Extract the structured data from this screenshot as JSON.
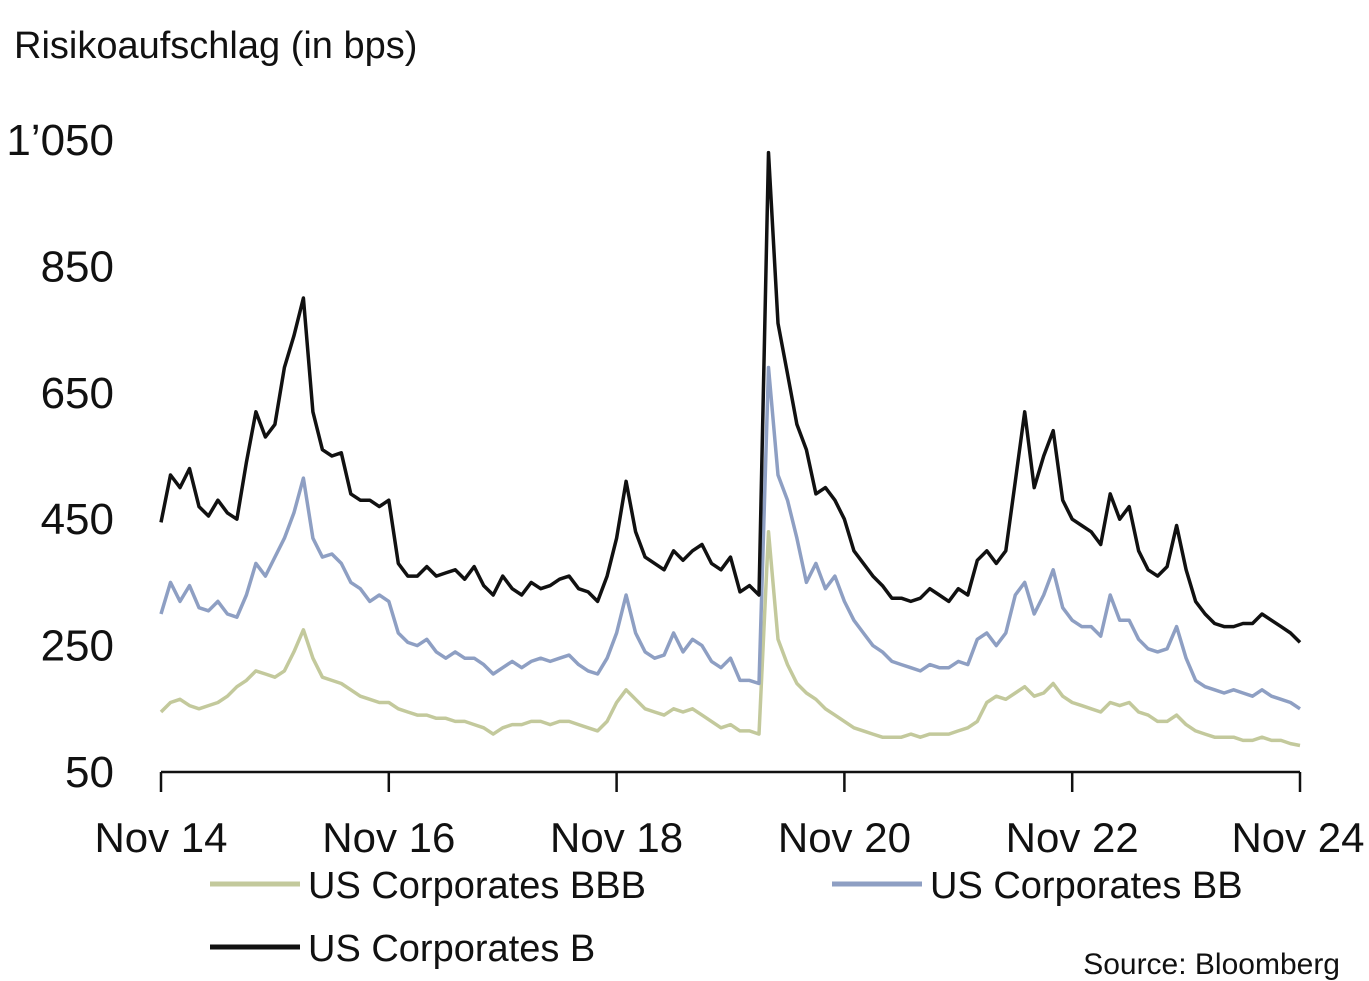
{
  "chart_data": {
    "type": "line",
    "title": "Risikoaufschlag (in bps)",
    "xlabel": "",
    "ylabel": "Risikoaufschlag (in bps)",
    "x_unit": "months since Nov 2014",
    "x": [
      0,
      1,
      2,
      3,
      4,
      5,
      6,
      7,
      8,
      9,
      10,
      11,
      12,
      13,
      14,
      15,
      16,
      17,
      18,
      19,
      20,
      21,
      22,
      23,
      24,
      25,
      26,
      27,
      28,
      29,
      30,
      31,
      32,
      33,
      34,
      35,
      36,
      37,
      38,
      39,
      40,
      41,
      42,
      43,
      44,
      45,
      46,
      47,
      48,
      49,
      50,
      51,
      52,
      53,
      54,
      55,
      56,
      57,
      58,
      59,
      60,
      61,
      62,
      63,
      64,
      65,
      66,
      67,
      68,
      69,
      70,
      71,
      72,
      73,
      74,
      75,
      76,
      77,
      78,
      79,
      80,
      81,
      82,
      83,
      84,
      85,
      86,
      87,
      88,
      89,
      90,
      91,
      92,
      93,
      94,
      95,
      96,
      97,
      98,
      99,
      100,
      101,
      102,
      103,
      104,
      105,
      106,
      107,
      108,
      109,
      110,
      111,
      112,
      113,
      114,
      115,
      116,
      117,
      118,
      119,
      120
    ],
    "xticks": [
      {
        "value": 0,
        "label": "Nov 14"
      },
      {
        "value": 24,
        "label": "Nov 16"
      },
      {
        "value": 48,
        "label": "Nov 18"
      },
      {
        "value": 72,
        "label": "Nov 20"
      },
      {
        "value": 96,
        "label": "Nov 22"
      },
      {
        "value": 120,
        "label": "Nov 24"
      }
    ],
    "yticks": [
      {
        "value": 50,
        "label": "50"
      },
      {
        "value": 250,
        "label": "250"
      },
      {
        "value": 450,
        "label": "450"
      },
      {
        "value": 650,
        "label": "650"
      },
      {
        "value": 850,
        "label": "850"
      },
      {
        "value": 1050,
        "label": "1’050"
      }
    ],
    "ylim": [
      50,
      1050
    ],
    "xlim": [
      0,
      120
    ],
    "grid": false,
    "legend_placement": "bottom",
    "series": [
      {
        "name": "US Corporates BBB",
        "color": "#c3c99c",
        "values": [
          145,
          160,
          165,
          155,
          150,
          155,
          160,
          170,
          185,
          195,
          210,
          205,
          200,
          210,
          240,
          275,
          230,
          200,
          195,
          190,
          180,
          170,
          165,
          160,
          160,
          150,
          145,
          140,
          140,
          135,
          135,
          130,
          130,
          125,
          120,
          110,
          120,
          125,
          125,
          130,
          130,
          125,
          130,
          130,
          125,
          120,
          115,
          130,
          160,
          180,
          165,
          150,
          145,
          140,
          150,
          145,
          150,
          140,
          130,
          120,
          125,
          115,
          115,
          110,
          430,
          260,
          220,
          190,
          175,
          165,
          150,
          140,
          130,
          120,
          115,
          110,
          105,
          105,
          105,
          110,
          105,
          110,
          110,
          110,
          115,
          120,
          130,
          160,
          170,
          165,
          175,
          185,
          170,
          175,
          190,
          170,
          160,
          155,
          150,
          145,
          160,
          155,
          160,
          145,
          140,
          130,
          130,
          140,
          125,
          115,
          110,
          105,
          105,
          105,
          100,
          100,
          105,
          100,
          100,
          95,
          92
        ]
      },
      {
        "name": "US Corporates BB",
        "color": "#8e9fc3",
        "values": [
          300,
          350,
          320,
          345,
          310,
          305,
          320,
          300,
          295,
          330,
          380,
          360,
          390,
          420,
          460,
          515,
          420,
          390,
          395,
          380,
          350,
          340,
          320,
          330,
          320,
          270,
          255,
          250,
          260,
          240,
          230,
          240,
          230,
          230,
          220,
          205,
          215,
          225,
          215,
          225,
          230,
          225,
          230,
          235,
          220,
          210,
          205,
          230,
          270,
          330,
          270,
          240,
          230,
          235,
          270,
          240,
          260,
          250,
          225,
          215,
          230,
          195,
          195,
          190,
          690,
          520,
          480,
          420,
          350,
          380,
          340,
          360,
          320,
          290,
          270,
          250,
          240,
          225,
          220,
          215,
          210,
          220,
          215,
          215,
          225,
          220,
          260,
          270,
          250,
          270,
          330,
          350,
          300,
          330,
          370,
          310,
          290,
          280,
          280,
          265,
          330,
          290,
          290,
          260,
          245,
          240,
          245,
          280,
          230,
          195,
          185,
          180,
          175,
          180,
          175,
          170,
          180,
          170,
          165,
          160,
          150
        ]
      },
      {
        "name": "US Corporates B",
        "color": "#111111",
        "values": [
          445,
          520,
          500,
          530,
          470,
          455,
          480,
          460,
          450,
          540,
          620,
          580,
          600,
          690,
          740,
          800,
          620,
          560,
          550,
          555,
          490,
          480,
          480,
          470,
          480,
          380,
          360,
          360,
          375,
          360,
          365,
          370,
          355,
          375,
          345,
          330,
          360,
          340,
          330,
          350,
          340,
          345,
          355,
          360,
          340,
          335,
          320,
          360,
          420,
          510,
          430,
          390,
          380,
          370,
          400,
          385,
          400,
          410,
          380,
          370,
          390,
          335,
          345,
          330,
          1030,
          760,
          680,
          600,
          560,
          490,
          500,
          480,
          450,
          400,
          380,
          360,
          345,
          325,
          325,
          320,
          325,
          340,
          330,
          320,
          340,
          330,
          385,
          400,
          380,
          400,
          510,
          620,
          500,
          550,
          590,
          480,
          450,
          440,
          430,
          410,
          490,
          450,
          470,
          400,
          370,
          360,
          375,
          440,
          370,
          320,
          300,
          285,
          280,
          280,
          285,
          285,
          300,
          290,
          280,
          270,
          255
        ]
      }
    ],
    "source": "Source: Bloomberg"
  }
}
